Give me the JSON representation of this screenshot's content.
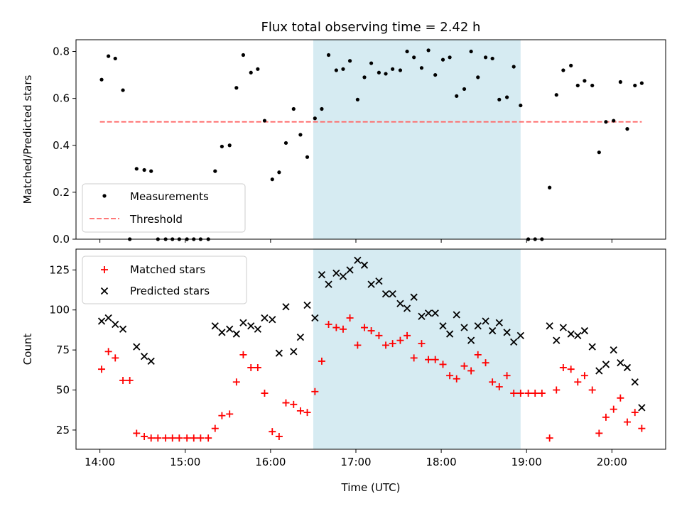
{
  "figure": {
    "title": "Flux total observing time = 2.42 h"
  },
  "chart_data": [
    {
      "type": "scatter",
      "ylabel": "Matched/Predicted stars",
      "xlim": [
        13.72,
        20.63
      ],
      "ylim": [
        0,
        0.85
      ],
      "yticks": [
        0.0,
        0.2,
        0.4,
        0.6,
        0.8
      ],
      "ytick_labels": [
        "0.0",
        "0.2",
        "0.4",
        "0.6",
        "0.8"
      ],
      "grid": false,
      "highlight_span": {
        "x_start": 16.5,
        "x_end": 18.93,
        "color": "#add8e6"
      },
      "threshold": {
        "y": 0.5,
        "x_start": 14.0,
        "x_end": 20.35,
        "color": "#ff6666"
      },
      "legend": {
        "position": "lower-left",
        "entries": [
          "Measurements",
          "Threshold"
        ]
      },
      "series": [
        {
          "name": "Measurements",
          "marker": "dot",
          "color": "#000000",
          "x": [
            14.02,
            14.1,
            14.18,
            14.27,
            14.35,
            14.43,
            14.52,
            14.6,
            14.68,
            14.77,
            14.85,
            14.93,
            15.02,
            15.1,
            15.18,
            15.27,
            15.35,
            15.43,
            15.52,
            15.6,
            15.68,
            15.77,
            15.85,
            15.93,
            16.02,
            16.1,
            16.18,
            16.27,
            16.35,
            16.43,
            16.52,
            16.6,
            16.68,
            16.77,
            16.85,
            16.93,
            17.02,
            17.1,
            17.18,
            17.27,
            17.35,
            17.43,
            17.52,
            17.6,
            17.68,
            17.77,
            17.85,
            17.93,
            18.02,
            18.1,
            18.18,
            18.27,
            18.35,
            18.43,
            18.52,
            18.6,
            18.68,
            18.77,
            18.85,
            18.93,
            19.02,
            19.1,
            19.18,
            19.27,
            19.35,
            19.43,
            19.52,
            19.6,
            19.68,
            19.77,
            19.85,
            19.93,
            20.02,
            20.1,
            20.18,
            20.27,
            20.35
          ],
          "y": [
            0.68,
            0.78,
            0.77,
            0.635,
            0.0,
            0.3,
            0.295,
            0.29,
            0.0,
            0.0,
            0.0,
            0.0,
            0.0,
            0.0,
            0.0,
            0.0,
            0.29,
            0.395,
            0.4,
            0.645,
            0.785,
            0.71,
            0.725,
            0.505,
            0.255,
            0.285,
            0.41,
            0.555,
            0.445,
            0.35,
            0.515,
            0.555,
            0.785,
            0.72,
            0.725,
            0.76,
            0.595,
            0.69,
            0.75,
            0.71,
            0.705,
            0.725,
            0.72,
            0.8,
            0.775,
            0.73,
            0.805,
            0.7,
            0.765,
            0.775,
            0.61,
            0.64,
            0.8,
            0.69,
            0.775,
            0.77,
            0.595,
            0.605,
            0.735,
            0.57,
            0.0,
            0.0,
            0.0,
            0.22,
            0.615,
            0.72,
            0.74,
            0.655,
            0.675,
            0.655,
            0.37,
            0.5,
            0.505,
            0.67,
            0.47,
            0.655,
            0.665
          ]
        }
      ]
    },
    {
      "type": "scatter",
      "xlabel": "Time (UTC)",
      "ylabel": "Count",
      "xlim": [
        13.72,
        20.63
      ],
      "ylim": [
        13,
        138
      ],
      "yticks": [
        25,
        50,
        75,
        100,
        125
      ],
      "ytick_labels": [
        "25",
        "50",
        "75",
        "100",
        "125"
      ],
      "xticks": [
        14,
        15,
        16,
        17,
        18,
        19,
        20
      ],
      "xtick_labels": [
        "14:00",
        "15:00",
        "16:00",
        "17:00",
        "18:00",
        "19:00",
        "20:00"
      ],
      "grid": false,
      "highlight_span": {
        "x_start": 16.5,
        "x_end": 18.93,
        "color": "#add8e6"
      },
      "legend": {
        "position": "top-left",
        "entries": [
          "Matched stars",
          "Predicted stars"
        ]
      },
      "series": [
        {
          "name": "Matched stars",
          "marker": "plus",
          "color": "#ff0000",
          "x": [
            14.02,
            14.1,
            14.18,
            14.27,
            14.35,
            14.43,
            14.52,
            14.6,
            14.68,
            14.77,
            14.85,
            14.93,
            15.02,
            15.1,
            15.18,
            15.27,
            15.35,
            15.43,
            15.52,
            15.6,
            15.68,
            15.77,
            15.85,
            15.93,
            16.02,
            16.1,
            16.18,
            16.27,
            16.35,
            16.43,
            16.52,
            16.6,
            16.68,
            16.77,
            16.85,
            16.93,
            17.02,
            17.1,
            17.18,
            17.27,
            17.35,
            17.43,
            17.52,
            17.6,
            17.68,
            17.77,
            17.85,
            17.93,
            18.02,
            18.1,
            18.18,
            18.27,
            18.35,
            18.43,
            18.52,
            18.6,
            18.68,
            18.77,
            18.85,
            18.93,
            19.02,
            19.1,
            19.18,
            19.27,
            19.35,
            19.43,
            19.52,
            19.6,
            19.68,
            19.77,
            19.85,
            19.93,
            20.02,
            20.1,
            20.18,
            20.27,
            20.35
          ],
          "y": [
            63,
            74,
            70,
            56,
            56,
            23,
            21,
            20,
            20,
            20,
            20,
            20,
            20,
            20,
            20,
            20,
            26,
            34,
            35,
            55,
            72,
            64,
            64,
            48,
            24,
            21,
            42,
            41,
            37,
            36,
            49,
            68,
            91,
            89,
            88,
            95,
            78,
            89,
            87,
            84,
            78,
            79,
            81,
            84,
            70,
            79,
            69,
            69,
            66,
            59,
            57,
            65,
            62,
            72,
            67,
            55,
            52,
            59,
            48,
            48,
            48,
            48,
            48,
            20,
            50,
            64,
            63,
            55,
            59,
            50,
            23,
            33,
            38,
            45,
            30,
            36,
            26
          ]
        },
        {
          "name": "Predicted stars",
          "marker": "x",
          "color": "#000000",
          "x": [
            14.02,
            14.1,
            14.18,
            14.27,
            14.43,
            14.52,
            14.6,
            15.35,
            15.43,
            15.52,
            15.6,
            15.68,
            15.77,
            15.85,
            15.93,
            16.02,
            16.1,
            16.18,
            16.27,
            16.35,
            16.43,
            16.52,
            16.6,
            16.68,
            16.77,
            16.85,
            16.93,
            17.02,
            17.1,
            17.18,
            17.27,
            17.35,
            17.43,
            17.52,
            17.6,
            17.68,
            17.77,
            17.85,
            17.93,
            18.02,
            18.1,
            18.18,
            18.27,
            18.35,
            18.43,
            18.52,
            18.6,
            18.68,
            18.77,
            18.85,
            18.93,
            19.27,
            19.35,
            19.43,
            19.52,
            19.6,
            19.68,
            19.77,
            19.85,
            19.93,
            20.02,
            20.1,
            20.18,
            20.27,
            20.35
          ],
          "y": [
            93,
            95,
            91,
            88,
            77,
            71,
            68,
            90,
            86,
            88,
            85,
            92,
            90,
            88,
            95,
            94,
            73,
            102,
            74,
            83,
            103,
            95,
            122,
            116,
            123,
            121,
            125,
            131,
            128,
            116,
            118,
            110,
            110,
            104,
            101,
            108,
            96,
            98,
            98,
            90,
            85,
            97,
            89,
            81,
            90,
            93,
            87,
            92,
            86,
            80,
            84,
            90,
            81,
            89,
            85,
            84,
            87,
            77,
            62,
            66,
            75,
            67,
            64,
            55,
            39
          ]
        }
      ]
    }
  ]
}
